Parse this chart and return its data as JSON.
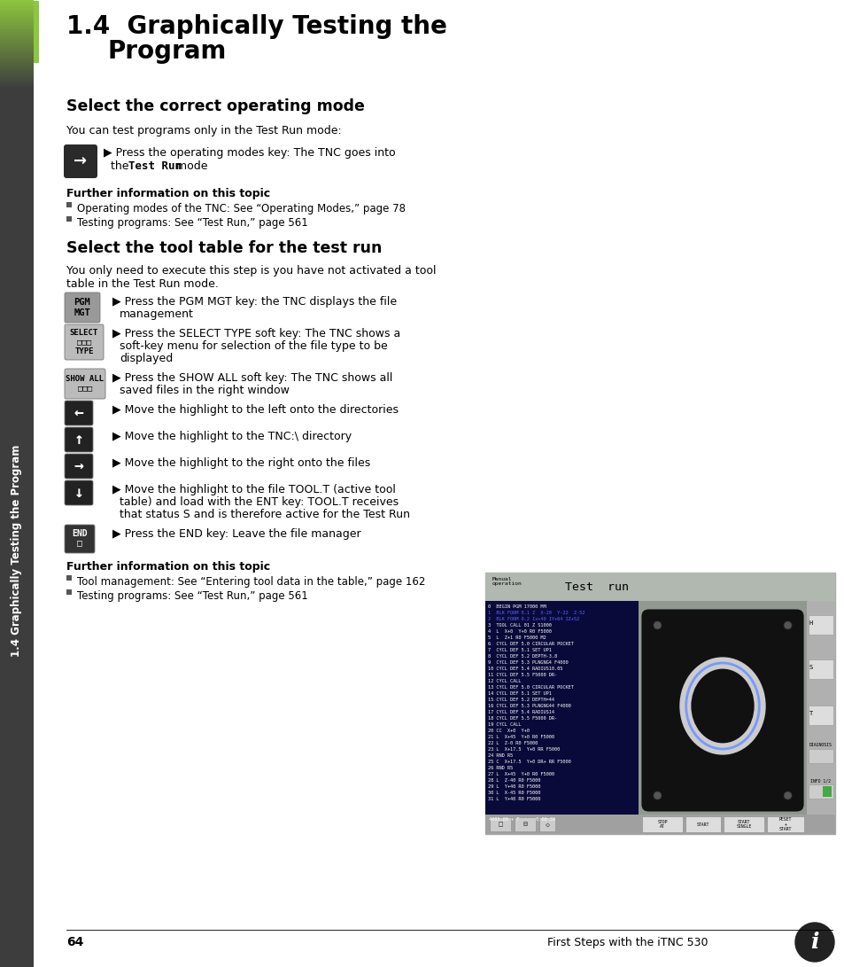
{
  "page_bg": "#ffffff",
  "sidebar_bg": "#3d3d3d",
  "sidebar_text": "1.4 Graphically Testing the Program",
  "sidebar_color": "#ffffff",
  "green_bar_color": "#8dc63f",
  "chapter_number": "1.4",
  "chapter_title_line1": "Graphically Testing the",
  "chapter_title_line2": "Program",
  "section1_title": "Select the correct operating mode",
  "section1_body": "You can test programs only in the Test Run mode:",
  "further_info_title1": "Further information on this topic",
  "further_info_items1": [
    "Operating modes of the TNC: See “Operating Modes,” page 78",
    "Testing programs: See “Test Run,” page 561"
  ],
  "section2_title": "Select the tool table for the test run",
  "section2_body1": "You only need to execute this step is you have not activated a tool",
  "section2_body2": "table in the Test Run mode.",
  "section2_bullets": [
    "Press the PGM MGT key: the TNC displays the file\nmanagement",
    "Press the SELECT TYPE soft key: The TNC shows a\nsoft-key menu for selection of the file type to be\ndisplayed",
    "Press the SHOW ALL soft key: The TNC shows all\nsaved files in the right window",
    "Move the highlight to the left onto the directories",
    "Move the highlight to the TNC:\\ directory",
    "Move the highlight to the right onto the files",
    "Move the highlight to the file TOOL.T (active tool\ntable) and load with the ENT key: TOOL.T receives\nthat status S and is therefore active for the Test Run",
    "Press the END key: Leave the file manager"
  ],
  "further_info_title2": "Further information on this topic",
  "further_info_items2": [
    "Tool management: See “Entering tool data in the table,” page 162",
    "Testing programs: See “Test Run,” page 561"
  ],
  "page_number": "64",
  "footer_text": "First Steps with the iTNC 530",
  "code_lines": [
    [
      "0  BEGIN PGM 17000 MM",
      "white"
    ],
    [
      "1  BLK FORM 0.1 Z  X-20  Y-22  Z-52",
      "#5566ff"
    ],
    [
      "2  BLK FORM 0.2 Ix+40 IY+64 IZ+52",
      "#5566ff"
    ],
    [
      "3  TOOL CALL 01 Z S1000",
      "white"
    ],
    [
      "4  L  X+0  Y+0 R0 F5000",
      "white"
    ],
    [
      "5  L  Z+1 R0 F5000 M2",
      "white"
    ],
    [
      "6  CYCL DEF 5.0 CIRCULAR POCKET",
      "white"
    ],
    [
      "7  CYCL DEF 5.1 SET UP1",
      "white"
    ],
    [
      "8  CYCL DEF 5.2 DEPTH-3.8",
      "white"
    ],
    [
      "9  CYCL DEF 5.3 PLNGNG4 F4000",
      "white"
    ],
    [
      "10 CYCL DEF 5.4 RADIUS10.05",
      "white"
    ],
    [
      "11 CYCL DEF 5.5 F5000 DR-",
      "white"
    ],
    [
      "12 CYCL CALL",
      "white"
    ],
    [
      "13 CYCL DEF 5.0 CIRCULAR POCKET",
      "white"
    ],
    [
      "14 CYCL DEF 5.1 SET UP1",
      "white"
    ],
    [
      "15 CYCL DEF 5.2 DEPTH=44",
      "white"
    ],
    [
      "16 CYCL DEF 5.3 PLNGNG44 F4000",
      "white"
    ],
    [
      "17 CYCL DEF 5.4 RADIUS14",
      "white"
    ],
    [
      "18 CYCL DEF 5.5 F5000 DR-",
      "white"
    ],
    [
      "19 CYCL CALL",
      "white"
    ],
    [
      "20 CC  X+0  Y+0",
      "white"
    ],
    [
      "21 L  X+45  Y+0 R0 F5000",
      "white"
    ],
    [
      "22 L  Z-0 R0 F5000",
      "white"
    ],
    [
      "23 L  X+17.5  Y+0 RR F5000",
      "white"
    ],
    [
      "24 RND R5",
      "white"
    ],
    [
      "25 C  X+17.5  Y+0 DR+ RR F5000",
      "white"
    ],
    [
      "26 RND R5",
      "white"
    ],
    [
      "27 L  X+45  Y+0 R0 F5000",
      "white"
    ],
    [
      "28 L  Z-40 R0 F5000",
      "white"
    ],
    [
      "29 L  Y+40 R0 F5000",
      "white"
    ],
    [
      "30 L  X-45 R0 F5000",
      "white"
    ],
    [
      "31 L  Y+40 R0 F5000",
      "white"
    ]
  ]
}
